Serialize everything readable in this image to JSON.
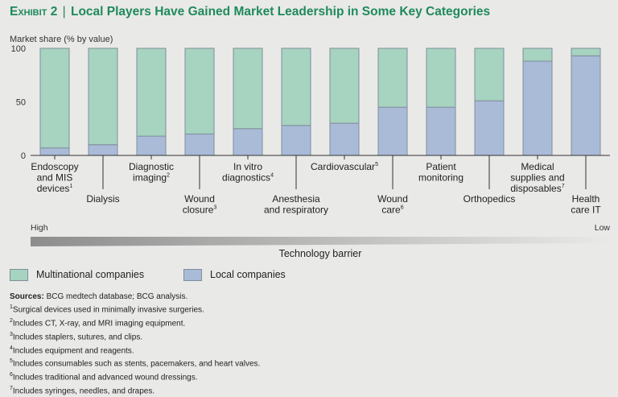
{
  "title": {
    "exhibit": "Exhibit 2",
    "separator": "|",
    "text": "Local Players Have Gained Market Leadership in Some Key Categories"
  },
  "chart_data": {
    "type": "bar",
    "stacked": true,
    "ylabel": "Market share (% by value)",
    "ylim": [
      0,
      100
    ],
    "yticks": [
      "0",
      "50",
      "100"
    ],
    "categories": [
      {
        "label": "Endoscopy and MIS devices",
        "lines": [
          "Endoscopy",
          "and MIS",
          "devices"
        ],
        "sup": "1"
      },
      {
        "label": "Dialysis",
        "lines": [
          "Dialysis"
        ],
        "sup": ""
      },
      {
        "label": "Diagnostic imaging",
        "lines": [
          "Diagnostic",
          "imaging"
        ],
        "sup": "2"
      },
      {
        "label": "Wound closure",
        "lines": [
          "Wound",
          "closure"
        ],
        "sup": "3"
      },
      {
        "label": "In vitro diagnostics",
        "lines": [
          "In vitro",
          "diagnostics"
        ],
        "sup": "4"
      },
      {
        "label": "Anesthesia and respiratory",
        "lines": [
          "Anesthesia",
          "and respiratory"
        ],
        "sup": ""
      },
      {
        "label": "Cardiovascular",
        "lines": [
          "Cardiovascular"
        ],
        "sup": "5"
      },
      {
        "label": "Wound care",
        "lines": [
          "Wound",
          "care"
        ],
        "sup": "6"
      },
      {
        "label": "Patient monitoring",
        "lines": [
          "Patient",
          "monitoring"
        ],
        "sup": ""
      },
      {
        "label": "Orthopedics",
        "lines": [
          "Orthopedics"
        ],
        "sup": ""
      },
      {
        "label": "Medical supplies and disposables",
        "lines": [
          "Medical",
          "supplies and",
          "disposables"
        ],
        "sup": "7"
      },
      {
        "label": "Health care IT",
        "lines": [
          "Health",
          "care IT"
        ],
        "sup": ""
      }
    ],
    "series": [
      {
        "name": "Local companies",
        "color": "#aabbd8",
        "values": [
          7,
          10,
          18,
          20,
          25,
          28,
          30,
          45,
          45,
          51,
          88,
          93
        ]
      },
      {
        "name": "Multinational companies",
        "color": "#a7d3c1",
        "values": [
          93,
          90,
          82,
          80,
          75,
          72,
          70,
          55,
          55,
          49,
          12,
          7
        ]
      }
    ],
    "gradient_axis": {
      "label": "Technology barrier",
      "high_label": "High",
      "low_label": "Low"
    }
  },
  "legend": {
    "multinational": "Multinational companies",
    "local": "Local companies"
  },
  "notes": {
    "sources_label": "Sources:",
    "sources_text": "BCG medtech database; BCG analysis.",
    "footnotes": [
      {
        "num": "1",
        "text": "Surgical devices used in minimally invasive surgeries."
      },
      {
        "num": "2",
        "text": "Includes CT, X-ray, and MRI imaging equipment."
      },
      {
        "num": "3",
        "text": "Includes staplers, sutures, and clips."
      },
      {
        "num": "4",
        "text": "Includes equipment and reagents."
      },
      {
        "num": "5",
        "text": "Includes consumables such as stents, pacemakers, and heart valves."
      },
      {
        "num": "6",
        "text": "Includes traditional and advanced wound dressings."
      },
      {
        "num": "7",
        "text": "Includes syringes, needles, and drapes."
      }
    ]
  }
}
